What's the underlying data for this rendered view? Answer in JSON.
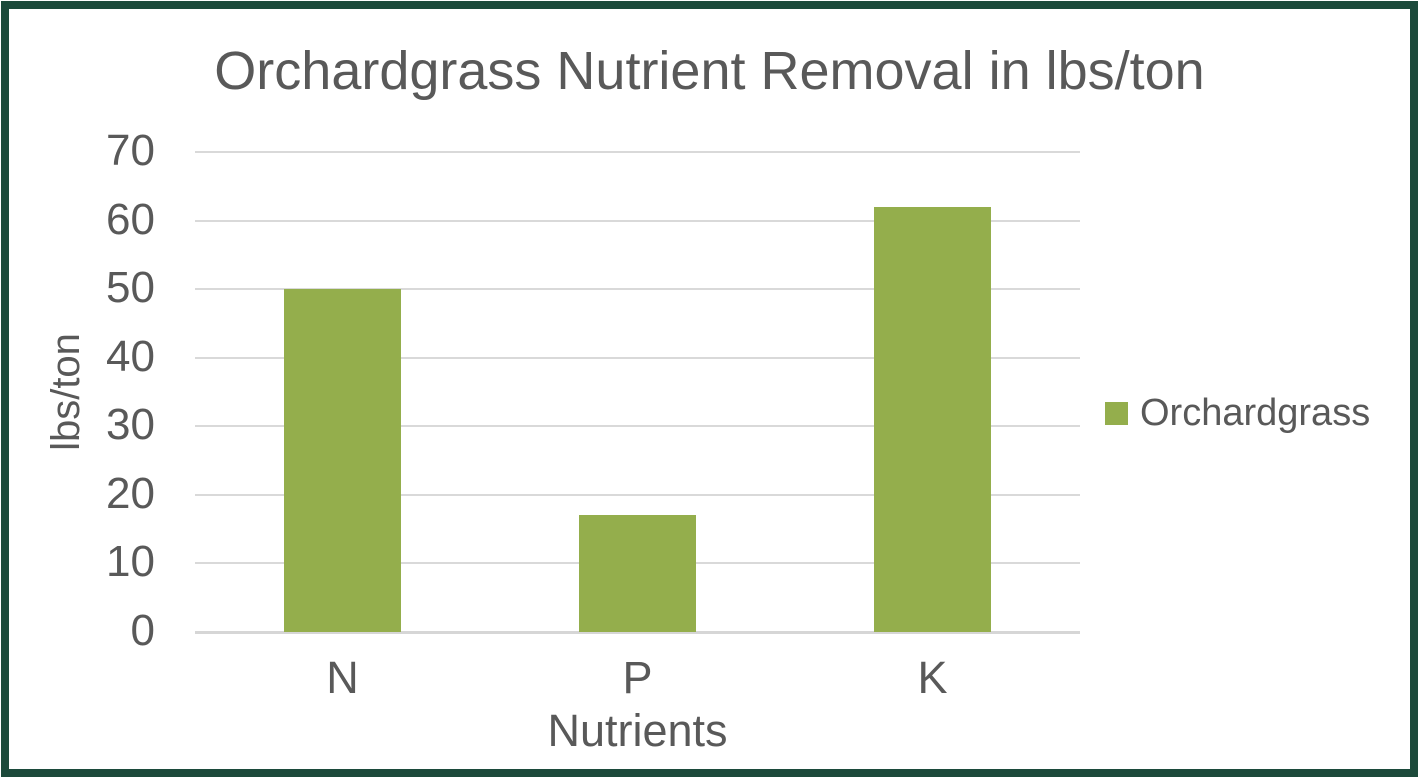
{
  "title": "Orchardgrass Nutrient Removal in lbs/ton",
  "colors": {
    "bar": "#94AE4C",
    "text": "#595959",
    "gridline": "#D9D9D9",
    "axis_line": "#D6D6D6",
    "frame_border": "#1C4A3B",
    "background": "#FFFFFF"
  },
  "legend": {
    "position": "right",
    "items": [
      {
        "label": "Orchardgrass",
        "swatch_color": "#94AE4C"
      }
    ]
  },
  "chart_data": {
    "type": "bar",
    "title": "Orchardgrass Nutrient Removal in lbs/ton",
    "categories": [
      "N",
      "P",
      "K"
    ],
    "series": [
      {
        "name": "Orchardgrass",
        "values": [
          50,
          17,
          62
        ]
      }
    ],
    "xlabel": "Nutrients",
    "ylabel": "lbs/ton",
    "ylim": [
      0,
      70
    ],
    "yticks": [
      0,
      10,
      20,
      30,
      40,
      50,
      60,
      70
    ],
    "grid": "horizontal",
    "legend_position": "right"
  }
}
